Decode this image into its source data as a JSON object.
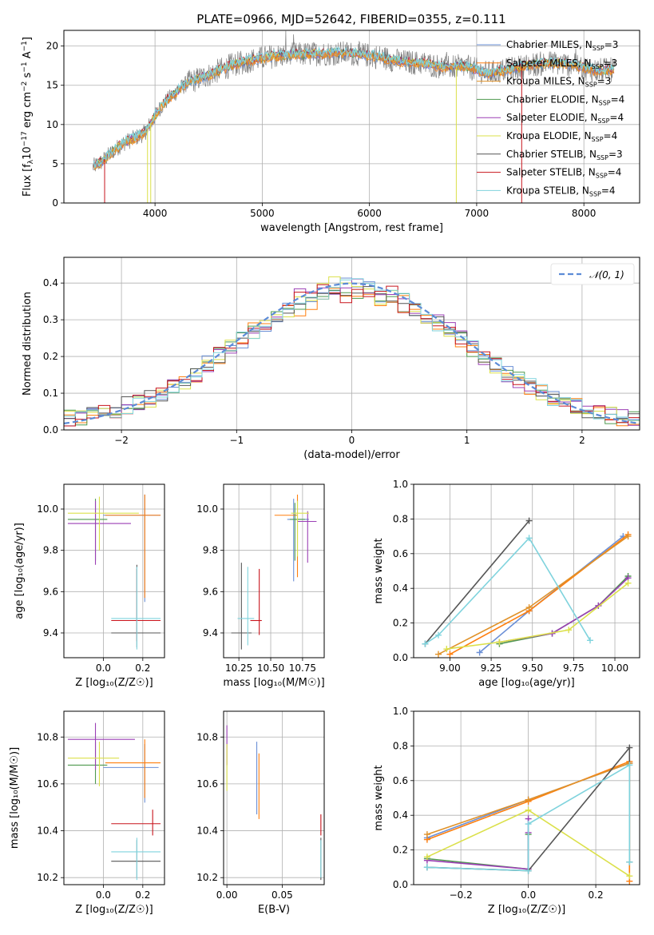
{
  "figure_title": "PLATE=0966, MJD=52642, FIBERID=0355, z=0.111",
  "models": [
    {
      "label": "Chabrier MILES, N",
      "sub": "SSP",
      "tail": "=3",
      "color": "#6a8fd6"
    },
    {
      "label": "Salpeter MILES, N",
      "sub": "SSP",
      "tail": "=3",
      "color": "#ff7f0e"
    },
    {
      "label": "Kroupa MILES, N",
      "sub": "SSP",
      "tail": "=3",
      "color": "#e0922a"
    },
    {
      "label": "Chabrier ELODIE, N",
      "sub": "SSP",
      "tail": "=4",
      "color": "#4f9a4f"
    },
    {
      "label": "Salpeter ELODIE, N",
      "sub": "SSP",
      "tail": "=4",
      "color": "#9b3fb5"
    },
    {
      "label": "Kroupa ELODIE, N",
      "sub": "SSP",
      "tail": "=4",
      "color": "#dbe04a"
    },
    {
      "label": "Chabrier STELIB, N",
      "sub": "SSP",
      "tail": "=3",
      "color": "#555555"
    },
    {
      "label": "Salpeter STELIB, N",
      "sub": "SSP",
      "tail": "=4",
      "color": "#c8141c"
    },
    {
      "label": "Kroupa STELIB, N",
      "sub": "SSP",
      "tail": "=4",
      "color": "#7fd3dd"
    }
  ],
  "chart_data": [
    {
      "id": "spectrum",
      "type": "line",
      "xlabel": "wavelength [Angstrom, rest frame]",
      "ylabel_main": "Flux [f",
      "ylabel_sub": "λ",
      "ylabel_rest": "10",
      "ylabel_exp": "−17",
      "ylabel_units": " erg cm",
      "xlim": [
        3150,
        8520
      ],
      "ylim": [
        0,
        22
      ],
      "xticks": [
        "4000",
        "5000",
        "6000",
        "7000",
        "8000"
      ],
      "yticks": [
        "0",
        "5",
        "10",
        "15",
        "20"
      ],
      "data_color": "#808080",
      "continuum": {
        "x": [
          3420,
          3500,
          3600,
          3700,
          3800,
          3900,
          3980,
          4050,
          4150,
          4300,
          4500,
          4700,
          4900,
          5100,
          5300,
          5500,
          5700,
          5900,
          6100,
          6300,
          6500,
          6700,
          6900,
          7100,
          7300,
          7500,
          7700,
          7900,
          8100,
          8300
        ],
        "y": [
          4.6,
          5.2,
          6.5,
          7.6,
          8.2,
          8.9,
          10.6,
          12.2,
          13.6,
          15.3,
          16.3,
          17.5,
          18.2,
          18.7,
          18.9,
          19.0,
          19.1,
          19.0,
          18.6,
          18.0,
          17.8,
          17.3,
          17.4,
          16.5,
          17.0,
          17.6,
          17.9,
          17.6,
          16.9,
          17.0
        ]
      }
    },
    {
      "id": "residual-histogram",
      "type": "histogram",
      "xlabel": "(data-model)/error",
      "ylabel": "Normed distribution",
      "xlim": [
        -2.5,
        2.5
      ],
      "ylim": [
        0,
        0.47
      ],
      "xticks": [
        "−2",
        "−1",
        "0",
        "1",
        "2"
      ],
      "yticks": [
        "0.0",
        "0.1",
        "0.2",
        "0.3",
        "0.4"
      ],
      "bin_width": 0.1,
      "reference_label": "𝒩(0, 1)",
      "reference_color": "#5b8bd6"
    },
    {
      "id": "age-vs-Z",
      "type": "errorbar",
      "xlabel": "Z [log₁₀(Z/Z☉)]",
      "ylabel": "age  [log₁₀(age/yr)]",
      "xlim": [
        -0.2,
        0.31
      ],
      "ylim": [
        9.28,
        10.12
      ],
      "xticks": [
        {
          "v": 0.0,
          "t": "0.0"
        },
        {
          "v": 0.2,
          "t": "0.2"
        }
      ],
      "yticks": [
        {
          "v": 9.4,
          "t": "9.4"
        },
        {
          "v": 9.6,
          "t": "9.6"
        },
        {
          "v": 9.8,
          "t": "9.8"
        },
        {
          "v": 10.0,
          "t": "10.0"
        }
      ],
      "points": [
        {
          "m": 0,
          "x": 0.21,
          "y": 9.97,
          "xerr": [
            0.21,
            0.08
          ],
          "yerr": [
            0.42,
            0.1
          ]
        },
        {
          "m": 1,
          "x": 0.21,
          "y": 9.97,
          "xerr": [
            0.2,
            0.08
          ],
          "yerr": [
            0.4,
            0.1
          ]
        },
        {
          "m": 3,
          "x": -0.04,
          "y": 9.95,
          "xerr": [
            0.14,
            0.06
          ],
          "yerr": [
            0.2,
            0.1
          ]
        },
        {
          "m": 4,
          "x": -0.04,
          "y": 9.93,
          "xerr": [
            0.14,
            0.18
          ],
          "yerr": [
            0.2,
            0.11
          ]
        },
        {
          "m": 5,
          "x": -0.02,
          "y": 9.98,
          "xerr": [
            0.16,
            0.2
          ],
          "yerr": [
            0.18,
            0.08
          ]
        },
        {
          "m": 6,
          "x": 0.17,
          "y": 9.4,
          "xerr": [
            0.13,
            0.12
          ],
          "yerr": [
            0.07,
            0.33
          ]
        },
        {
          "m": 7,
          "x": 0.17,
          "y": 9.46,
          "xerr": [
            0.13,
            0.12
          ],
          "yerr": [
            0.1,
            0.25
          ]
        },
        {
          "m": 8,
          "x": 0.17,
          "y": 9.47,
          "xerr": [
            0.13,
            0.12
          ],
          "yerr": [
            0.15,
            0.25
          ]
        }
      ]
    },
    {
      "id": "age-vs-mass",
      "type": "errorbar",
      "xlabel": "mass [log₁₀(M/M☉)]",
      "ylabel": "",
      "xlim": [
        10.13,
        10.92
      ],
      "ylim": [
        9.28,
        10.12
      ],
      "xticks": [
        {
          "v": 10.25,
          "t": "10.25"
        },
        {
          "v": 10.5,
          "t": "10.50"
        },
        {
          "v": 10.75,
          "t": "10.75"
        }
      ],
      "yticks": [
        {
          "v": 9.4,
          "t": "9.4"
        },
        {
          "v": 9.6,
          "t": "9.6"
        },
        {
          "v": 9.8,
          "t": "9.8"
        },
        {
          "v": 10.0,
          "t": "10.0"
        }
      ],
      "points": [
        {
          "m": 0,
          "x": 10.68,
          "y": 9.95,
          "xerr": [
            0.05,
            0.12
          ],
          "yerr": [
            0.3,
            0.1
          ]
        },
        {
          "m": 1,
          "x": 10.71,
          "y": 9.97,
          "xerr": [
            0.18,
            0.0
          ],
          "yerr": [
            0.3,
            0.1
          ]
        },
        {
          "m": 3,
          "x": 10.69,
          "y": 9.95,
          "xerr": [
            0.04,
            0.08
          ],
          "yerr": [
            0.2,
            0.08
          ]
        },
        {
          "m": 4,
          "x": 10.79,
          "y": 9.94,
          "xerr": [
            0.08,
            0.07
          ],
          "yerr": [
            0.2,
            0.05
          ]
        },
        {
          "m": 5,
          "x": 10.71,
          "y": 9.98,
          "xerr": [
            0.05,
            0.09
          ],
          "yerr": [
            0.21,
            0.06
          ]
        },
        {
          "m": 6,
          "x": 10.27,
          "y": 9.4,
          "xerr": [
            0.08,
            0.08
          ],
          "yerr": [
            0.08,
            0.34
          ]
        },
        {
          "m": 7,
          "x": 10.41,
          "y": 9.46,
          "xerr": [
            0.07,
            0.02
          ],
          "yerr": [
            0.07,
            0.25
          ]
        },
        {
          "m": 8,
          "x": 10.32,
          "y": 9.47,
          "xerr": [
            0.08,
            0.05
          ],
          "yerr": [
            0.13,
            0.25
          ]
        }
      ]
    },
    {
      "id": "mass-weight-vs-age",
      "type": "line",
      "xlabel": "age  [log₁₀(age/yr)]",
      "ylabel": "mass weight",
      "xlim": [
        8.78,
        10.15
      ],
      "ylim": [
        0,
        1.0
      ],
      "xticks": [
        {
          "v": 9.0,
          "t": "9.00"
        },
        {
          "v": 9.25,
          "t": "9.25"
        },
        {
          "v": 9.5,
          "t": "9.50"
        },
        {
          "v": 9.75,
          "t": "9.75"
        },
        {
          "v": 10.0,
          "t": "10.00"
        }
      ],
      "yticks": [
        {
          "v": 0,
          "t": "0.0"
        },
        {
          "v": 0.2,
          "t": "0.2"
        },
        {
          "v": 0.4,
          "t": "0.4"
        },
        {
          "v": 0.6,
          "t": "0.6"
        },
        {
          "v": 0.8,
          "t": "0.8"
        },
        {
          "v": 1.0,
          "t": "1.0"
        }
      ],
      "series": [
        {
          "m": 0,
          "x": [
            9.18,
            9.48,
            10.05
          ],
          "y": [
            0.03,
            0.27,
            0.7
          ]
        },
        {
          "m": 1,
          "x": [
            9.0,
            9.48,
            10.08
          ],
          "y": [
            0.02,
            0.27,
            0.71
          ]
        },
        {
          "m": 2,
          "x": [
            8.93,
            9.48,
            10.08
          ],
          "y": [
            0.02,
            0.29,
            0.7
          ]
        },
        {
          "m": 3,
          "x": [
            9.3,
            9.62,
            9.9,
            10.08
          ],
          "y": [
            0.08,
            0.14,
            0.3,
            0.47
          ]
        },
        {
          "m": 4,
          "x": [
            9.3,
            9.62,
            9.9,
            10.08
          ],
          "y": [
            0.09,
            0.14,
            0.3,
            0.46
          ]
        },
        {
          "m": 5,
          "x": [
            8.98,
            9.3,
            9.72,
            10.08
          ],
          "y": [
            0.05,
            0.09,
            0.16,
            0.43
          ]
        },
        {
          "m": 6,
          "x": [
            8.85,
            9.48
          ],
          "y": [
            0.08,
            0.79
          ]
        },
        {
          "m": 8,
          "x": [
            8.85,
            8.93,
            9.48,
            9.85
          ],
          "y": [
            0.08,
            0.13,
            0.69,
            0.1
          ]
        }
      ]
    },
    {
      "id": "mass-vs-Z",
      "type": "errorbar",
      "xlabel": "Z [log₁₀(Z/Z☉)]",
      "ylabel": "mass [log₁₀(M/M☉)]",
      "xlim": [
        -0.2,
        0.31
      ],
      "ylim": [
        10.17,
        10.91
      ],
      "xticks": [
        {
          "v": 0.0,
          "t": "0.0"
        },
        {
          "v": 0.2,
          "t": "0.2"
        }
      ],
      "yticks": [
        {
          "v": 10.2,
          "t": "10.2"
        },
        {
          "v": 10.4,
          "t": "10.4"
        },
        {
          "v": 10.6,
          "t": "10.6"
        },
        {
          "v": 10.8,
          "t": "10.8"
        }
      ],
      "points": [
        {
          "m": 0,
          "x": 0.21,
          "y": 10.67,
          "xerr": [
            0.21,
            0.07
          ],
          "yerr": [
            0.15,
            0.1
          ]
        },
        {
          "m": 1,
          "x": 0.21,
          "y": 10.69,
          "xerr": [
            0.2,
            0.08
          ],
          "yerr": [
            0.15,
            0.1
          ]
        },
        {
          "m": 3,
          "x": -0.04,
          "y": 10.68,
          "xerr": [
            0.14,
            0.06
          ],
          "yerr": [
            0.08,
            0.1
          ]
        },
        {
          "m": 4,
          "x": -0.04,
          "y": 10.79,
          "xerr": [
            0.14,
            0.2
          ],
          "yerr": [
            0.13,
            0.07
          ]
        },
        {
          "m": 5,
          "x": -0.02,
          "y": 10.71,
          "xerr": [
            0.16,
            0.1
          ],
          "yerr": [
            0.12,
            0.07
          ]
        },
        {
          "m": 6,
          "x": 0.17,
          "y": 10.27,
          "xerr": [
            0.13,
            0.12
          ],
          "yerr": [
            0.07,
            0.09
          ]
        },
        {
          "m": 7,
          "x": 0.25,
          "y": 10.43,
          "xerr": [
            0.21,
            0.04
          ],
          "yerr": [
            0.05,
            0.06
          ]
        },
        {
          "m": 8,
          "x": 0.17,
          "y": 10.31,
          "xerr": [
            0.13,
            0.12
          ],
          "yerr": [
            0.12,
            0.06
          ]
        }
      ]
    },
    {
      "id": "mass-vs-ebv",
      "type": "errorbar",
      "xlabel": "E(B-V)",
      "ylabel": "",
      "xlim": [
        -0.003,
        0.088
      ],
      "ylim": [
        10.17,
        10.91
      ],
      "xticks": [
        {
          "v": 0.0,
          "t": "0.00"
        },
        {
          "v": 0.05,
          "t": "0.05"
        }
      ],
      "yticks": [
        {
          "v": 10.2,
          "t": "10.2"
        },
        {
          "v": 10.4,
          "t": "10.4"
        },
        {
          "v": 10.6,
          "t": "10.6"
        },
        {
          "v": 10.8,
          "t": "10.8"
        }
      ],
      "points": [
        {
          "m": 0,
          "x": 0.027,
          "y": 10.63,
          "xerr": [
            0,
            0
          ],
          "yerr": [
            0.16,
            0.15
          ]
        },
        {
          "m": 1,
          "x": 0.029,
          "y": 10.6,
          "xerr": [
            0,
            0
          ],
          "yerr": [
            0.15,
            0.13
          ]
        },
        {
          "m": 4,
          "x": 0.0,
          "y": 10.78,
          "xerr": [
            0,
            0
          ],
          "yerr": [
            0.1,
            0.07
          ]
        },
        {
          "m": 5,
          "x": 0.0,
          "y": 10.67,
          "xerr": [
            0,
            0
          ],
          "yerr": [
            0.1,
            0.1
          ]
        },
        {
          "m": 6,
          "x": 0.085,
          "y": 10.27,
          "xerr": [
            0,
            0
          ],
          "yerr": [
            0.08,
            0.1
          ]
        },
        {
          "m": 7,
          "x": 0.085,
          "y": 10.43,
          "xerr": [
            0,
            0
          ],
          "yerr": [
            0.05,
            0.04
          ]
        },
        {
          "m": 8,
          "x": 0.085,
          "y": 10.3,
          "xerr": [
            0,
            0
          ],
          "yerr": [
            0.1,
            0.06
          ]
        }
      ]
    },
    {
      "id": "mass-weight-vs-Z",
      "type": "line",
      "xlabel": "Z [log₁₀(Z/Z☉)]",
      "ylabel": "mass weight",
      "xlim": [
        -0.34,
        0.33
      ],
      "ylim": [
        0,
        1.0
      ],
      "xticks": [
        {
          "v": -0.2,
          "t": "−0.2"
        },
        {
          "v": 0.0,
          "t": "0.0"
        },
        {
          "v": 0.2,
          "t": "0.2"
        }
      ],
      "yticks": [
        {
          "v": 0,
          "t": "0.0"
        },
        {
          "v": 0.2,
          "t": "0.2"
        },
        {
          "v": 0.4,
          "t": "0.4"
        },
        {
          "v": 0.6,
          "t": "0.6"
        },
        {
          "v": 0.8,
          "t": "0.8"
        },
        {
          "v": 1.0,
          "t": "1.0"
        }
      ],
      "series": [
        {
          "m": 0,
          "x": [
            -0.3,
            0.0,
            0.3
          ],
          "y": [
            0.27,
            0.49,
            0.7
          ]
        },
        {
          "m": 1,
          "x": [
            -0.3,
            0.0,
            0.3,
            0.3
          ],
          "y": [
            0.26,
            0.48,
            0.71,
            0.02
          ]
        },
        {
          "m": 2,
          "x": [
            -0.3,
            0.0,
            0.3
          ],
          "y": [
            0.29,
            0.49,
            0.7
          ]
        },
        {
          "m": 3,
          "x": [
            -0.3,
            0.0,
            0.0
          ],
          "y": [
            0.15,
            0.09,
            0.29
          ]
        },
        {
          "m": 4,
          "x": [
            -0.3,
            0.0,
            0.0,
            0.0
          ],
          "y": [
            0.14,
            0.09,
            0.38,
            0.3
          ]
        },
        {
          "m": 5,
          "x": [
            -0.3,
            0.0,
            0.3
          ],
          "y": [
            0.16,
            0.43,
            0.05
          ]
        },
        {
          "m": 6,
          "x": [
            -0.3,
            0.0,
            0.3,
            0.3
          ],
          "y": [
            0.1,
            0.08,
            0.79,
            0.13
          ]
        },
        {
          "m": 8,
          "x": [
            -0.3,
            0.0,
            0.0,
            0.3,
            0.3
          ],
          "y": [
            0.1,
            0.08,
            0.35,
            0.69,
            0.13
          ]
        }
      ]
    }
  ]
}
